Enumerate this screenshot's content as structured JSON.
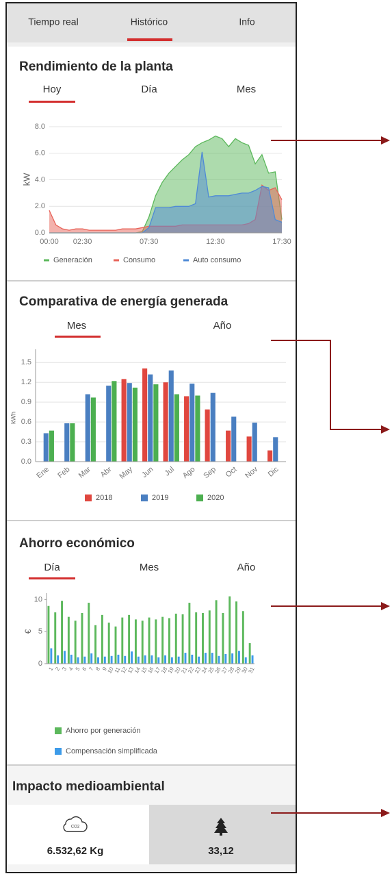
{
  "tabs": [
    "Tiempo real",
    "Histórico",
    "Info"
  ],
  "chart_data": [
    {
      "type": "area",
      "title": "Rendimiento de la planta",
      "periods": [
        "Hoy",
        "Día",
        "Mes"
      ],
      "y_label": "kW",
      "x": [
        0,
        0.5,
        1,
        1.5,
        2,
        2.5,
        3,
        3.5,
        4,
        4.5,
        5,
        5.5,
        6,
        6.5,
        7,
        7.5,
        8,
        8.5,
        9,
        9.5,
        10,
        10.5,
        11,
        11.5,
        12,
        12.5,
        13,
        13.5,
        14,
        14.5,
        15,
        15.5,
        16,
        16.5,
        17,
        17.5
      ],
      "xlim": [
        0,
        17.5
      ],
      "xticks": [
        {
          "value": 0,
          "label": "00:00"
        },
        {
          "value": 2.5,
          "label": "02:30"
        },
        {
          "value": 7.5,
          "label": "07:30"
        },
        {
          "value": 12.5,
          "label": "12:30"
        },
        {
          "value": 17.5,
          "label": "17:30"
        }
      ],
      "ylim": [
        0,
        8
      ],
      "yticks": [
        {
          "value": 0,
          "label": "0.0"
        },
        {
          "value": 2,
          "label": "2.0"
        },
        {
          "value": 4,
          "label": "4.0"
        },
        {
          "value": 6,
          "label": "6.0"
        },
        {
          "value": 8,
          "label": "8.0"
        }
      ],
      "grid": true,
      "series": [
        {
          "name": "Generación",
          "color": "#5cb85c",
          "values": [
            0,
            0,
            0,
            0,
            0,
            0,
            0,
            0,
            0,
            0,
            0,
            0,
            0,
            0,
            0.1,
            1.2,
            2.8,
            3.8,
            4.5,
            5.0,
            5.5,
            5.9,
            6.5,
            6.8,
            7.0,
            7.3,
            7.1,
            6.5,
            7.1,
            6.8,
            6.6,
            5.2,
            5.9,
            4.5,
            4.6,
            1.0
          ]
        },
        {
          "name": "Consumo",
          "color": "#e8645a",
          "values": [
            1.7,
            0.6,
            0.3,
            0.2,
            0.3,
            0.3,
            0.2,
            0.2,
            0.2,
            0.2,
            0.2,
            0.3,
            0.3,
            0.3,
            0.4,
            0.5,
            0.5,
            0.5,
            0.5,
            0.5,
            0.6,
            0.6,
            0.6,
            0.6,
            0.6,
            0.6,
            0.6,
            0.6,
            0.6,
            0.6,
            0.7,
            1.0,
            3.6,
            3.2,
            3.4,
            2.5
          ]
        },
        {
          "name": "Auto consumo",
          "color": "#4f8ad6",
          "values": [
            0,
            0,
            0,
            0,
            0,
            0,
            0,
            0,
            0,
            0,
            0,
            0,
            0,
            0,
            0,
            0.4,
            1.9,
            1.9,
            1.9,
            2.0,
            2.0,
            2.0,
            2.2,
            6.1,
            2.7,
            2.8,
            2.8,
            2.8,
            2.9,
            3.0,
            3.0,
            3.2,
            3.5,
            3.4,
            1.0,
            0.8
          ]
        }
      ]
    },
    {
      "type": "bar",
      "title": "Comparativa de energía generada",
      "periods": [
        "Mes",
        "Año"
      ],
      "y_label": "kWh",
      "categories": [
        "Ene",
        "Feb",
        "Mar",
        "Abr",
        "May",
        "Jun",
        "Jul",
        "Ago",
        "Sep",
        "Oct",
        "Nov",
        "Dic"
      ],
      "ylim": [
        0,
        1.7
      ],
      "yticks": [
        {
          "value": 0,
          "label": "0.0"
        },
        0.3,
        0.6,
        0.9,
        1.2,
        1.5
      ],
      "grid": true,
      "series": [
        {
          "name": "2018",
          "color": "#e0473f",
          "values": [
            null,
            null,
            null,
            null,
            1.25,
            1.41,
            1.2,
            0.99,
            0.79,
            0.47,
            0.38,
            0.17
          ]
        },
        {
          "name": "2019",
          "color": "#4a7fc1",
          "values": [
            0.43,
            0.58,
            1.02,
            1.15,
            1.19,
            1.32,
            1.38,
            1.18,
            1.04,
            0.68,
            0.59,
            0.37
          ]
        },
        {
          "name": "2020",
          "color": "#4caf50",
          "values": [
            0.47,
            0.58,
            0.97,
            1.22,
            1.12,
            1.17,
            1.02,
            1.0,
            null,
            null,
            null,
            null
          ]
        }
      ]
    },
    {
      "type": "bar",
      "title": "Ahorro económico",
      "periods": [
        "Día",
        "Mes",
        "Año"
      ],
      "y_label": "€",
      "categories": [
        "1",
        "2",
        "3",
        "4",
        "5",
        "6",
        "7",
        "8",
        "9",
        "10",
        "11",
        "12",
        "13",
        "14",
        "15",
        "16",
        "17",
        "18",
        "19",
        "20",
        "21",
        "22",
        "23",
        "24",
        "25",
        "26",
        "27",
        "28",
        "29",
        "30",
        "31"
      ],
      "ylim": [
        0,
        11
      ],
      "yticks": [
        0,
        5,
        10
      ],
      "grid": false,
      "series": [
        {
          "name": "Ahorro por generación",
          "color": "#5cb85c",
          "values": [
            9.0,
            8.0,
            9.8,
            7.3,
            6.7,
            7.9,
            9.5,
            6.0,
            7.6,
            6.4,
            5.8,
            7.2,
            7.6,
            6.9,
            6.7,
            7.2,
            6.9,
            7.3,
            7.1,
            7.8,
            7.7,
            9.5,
            8.0,
            7.9,
            8.3,
            9.9,
            7.9,
            10.5,
            9.7,
            8.2,
            3.2
          ]
        },
        {
          "name": "Compensación simplificada",
          "color": "#3d9be9",
          "values": [
            2.4,
            1.3,
            2.0,
            1.4,
            1.0,
            1.1,
            1.6,
            1.0,
            1.1,
            1.2,
            1.4,
            1.2,
            1.9,
            1.1,
            1.3,
            1.3,
            1.0,
            1.3,
            1.0,
            1.1,
            1.7,
            1.4,
            1.1,
            1.7,
            1.7,
            1.2,
            1.5,
            1.6,
            2.0,
            1.0,
            1.3
          ]
        }
      ]
    }
  ],
  "impact": {
    "title": "Impacto medioambiental",
    "co2_icon": "CO2",
    "co2": "6.532,62 Kg",
    "trees": "33,12"
  }
}
